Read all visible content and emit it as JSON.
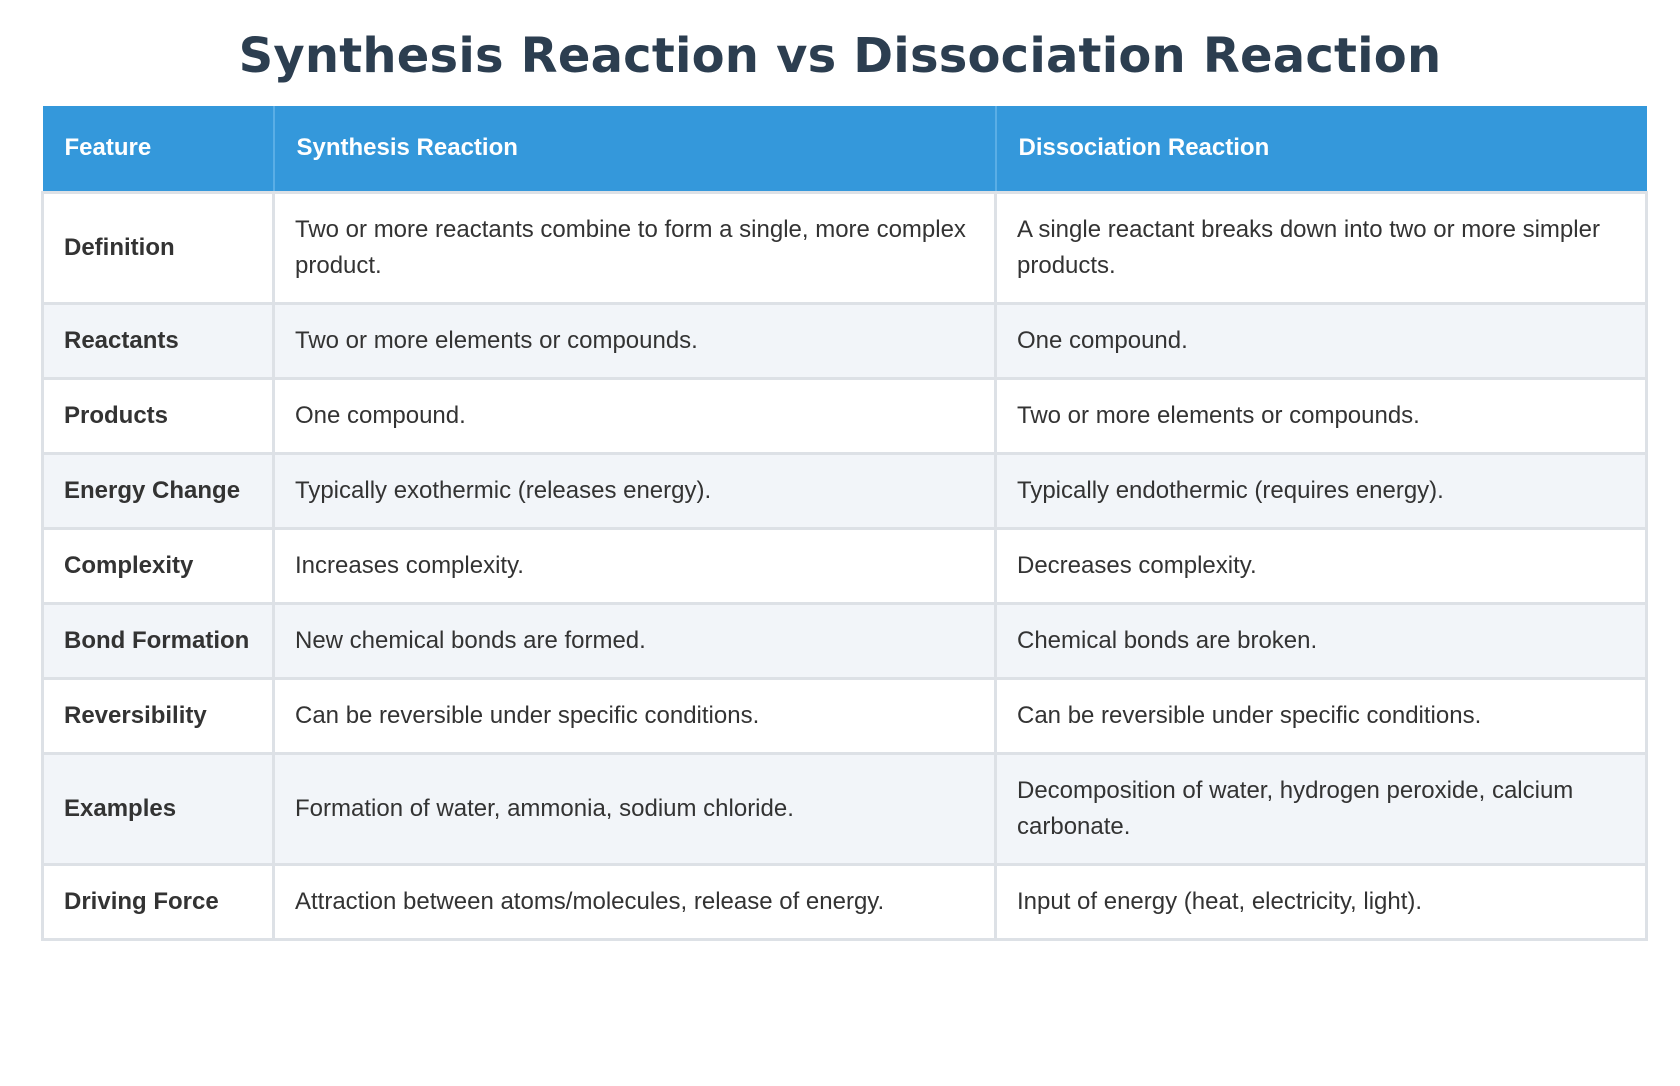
{
  "title": "Synthesis Reaction vs Dissociation Reaction",
  "table": {
    "headers": [
      "Feature",
      "Synthesis Reaction",
      "Dissociation Reaction"
    ],
    "rows": [
      {
        "feature": "Definition",
        "synthesis": "Two or more reactants combine to form a single, more complex product.",
        "dissociation": "A single reactant breaks down into two or more simpler products."
      },
      {
        "feature": "Reactants",
        "synthesis": "Two or more elements or compounds.",
        "dissociation": "One compound."
      },
      {
        "feature": "Products",
        "synthesis": "One compound.",
        "dissociation": "Two or more elements or compounds."
      },
      {
        "feature": "Energy Change",
        "synthesis": "Typically exothermic (releases energy).",
        "dissociation": "Typically endothermic (requires energy)."
      },
      {
        "feature": "Complexity",
        "synthesis": "Increases complexity.",
        "dissociation": "Decreases complexity."
      },
      {
        "feature": "Bond Formation",
        "synthesis": "New chemical bonds are formed.",
        "dissociation": "Chemical bonds are broken."
      },
      {
        "feature": "Reversibility",
        "synthesis": "Can be reversible under specific conditions.",
        "dissociation": "Can be reversible under specific conditions."
      },
      {
        "feature": "Examples",
        "synthesis": "Formation of water, ammonia, sodium chloride.",
        "dissociation": "Decomposition of water, hydrogen peroxide, calcium carbonate."
      },
      {
        "feature": "Driving Force",
        "synthesis": "Attraction between atoms/molecules, release of energy.",
        "dissociation": "Input of energy (heat, electricity, light)."
      }
    ]
  },
  "colors": {
    "header_bg": "#3498db",
    "title_text": "#2c3e50",
    "row_alt_bg": "#f2f5f9"
  }
}
